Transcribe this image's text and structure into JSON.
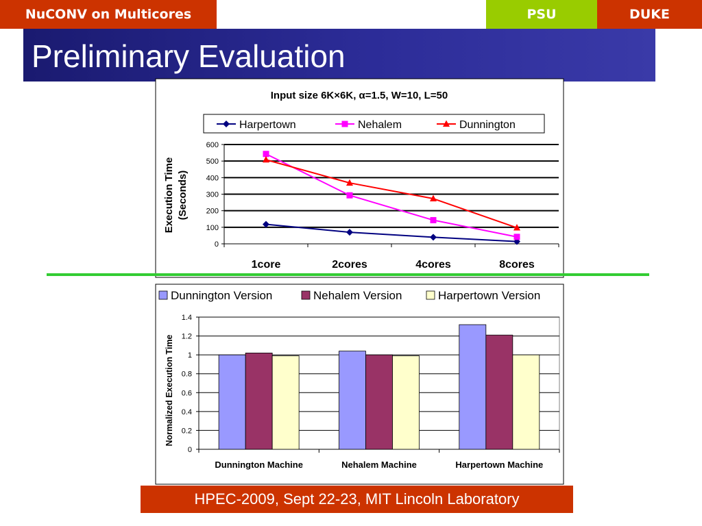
{
  "header": {
    "title": "NuCONV on Multicores",
    "tab_psu": "PSU",
    "tab_duke": "DUKE"
  },
  "slide_title": "Preliminary Evaluation",
  "footer": "HPEC-2009, Sept 22-23, MIT Lincoln Laboratory",
  "colors": {
    "header_red": "#cc3300",
    "psu_green": "#99cc00",
    "title_blue": "#262688",
    "divider_green": "#33cc33",
    "harpertown_line": "#000080",
    "nehalem_line": "#ff00ff",
    "dunnington_line": "#ff0000",
    "bar_dunnington": "#9999ff",
    "bar_nehalem": "#993366",
    "bar_harpertown": "#ffffcc"
  },
  "chart_data": [
    {
      "type": "line",
      "title": "Input size 6K×6K, α=1.5, W=10, L=50",
      "xlabel": "",
      "ylabel_lines": [
        "Execution Time",
        "(Seconds)"
      ],
      "categories": [
        "1core",
        "2cores",
        "4cores",
        "8cores"
      ],
      "ylim": [
        0,
        600
      ],
      "yticks": [
        0,
        100,
        200,
        300,
        400,
        500,
        600
      ],
      "grid": true,
      "legend": "top",
      "series": [
        {
          "name": "Harpertown",
          "color": "#000080",
          "marker": "diamond",
          "values": [
            118,
            70,
            40,
            14
          ]
        },
        {
          "name": "Nehalem",
          "color": "#ff00ff",
          "marker": "square",
          "values": [
            543,
            293,
            143,
            42
          ]
        },
        {
          "name": "Dunnington",
          "color": "#ff0000",
          "marker": "triangle",
          "values": [
            508,
            368,
            273,
            97
          ]
        }
      ]
    },
    {
      "type": "bar",
      "title": "",
      "xlabel": "",
      "ylabel": "Normalized Execution Time",
      "categories": [
        "Dunnington Machine",
        "Nehalem Machine",
        "Harpertown Machine"
      ],
      "ylim": [
        0,
        1.4
      ],
      "yticks": [
        "0",
        "0.2",
        "0.4",
        "0.6",
        "0.8",
        "1",
        "1.2",
        "1.4"
      ],
      "grid": true,
      "legend": "top",
      "series": [
        {
          "name": "Dunnington Version",
          "color": "#9999ff",
          "values": [
            1.0,
            1.04,
            1.32
          ]
        },
        {
          "name": "Nehalem Version",
          "color": "#993366",
          "values": [
            1.02,
            1.0,
            1.21
          ]
        },
        {
          "name": "Harpertown Version",
          "color": "#ffffcc",
          "values": [
            0.99,
            0.99,
            1.0
          ]
        }
      ]
    }
  ]
}
